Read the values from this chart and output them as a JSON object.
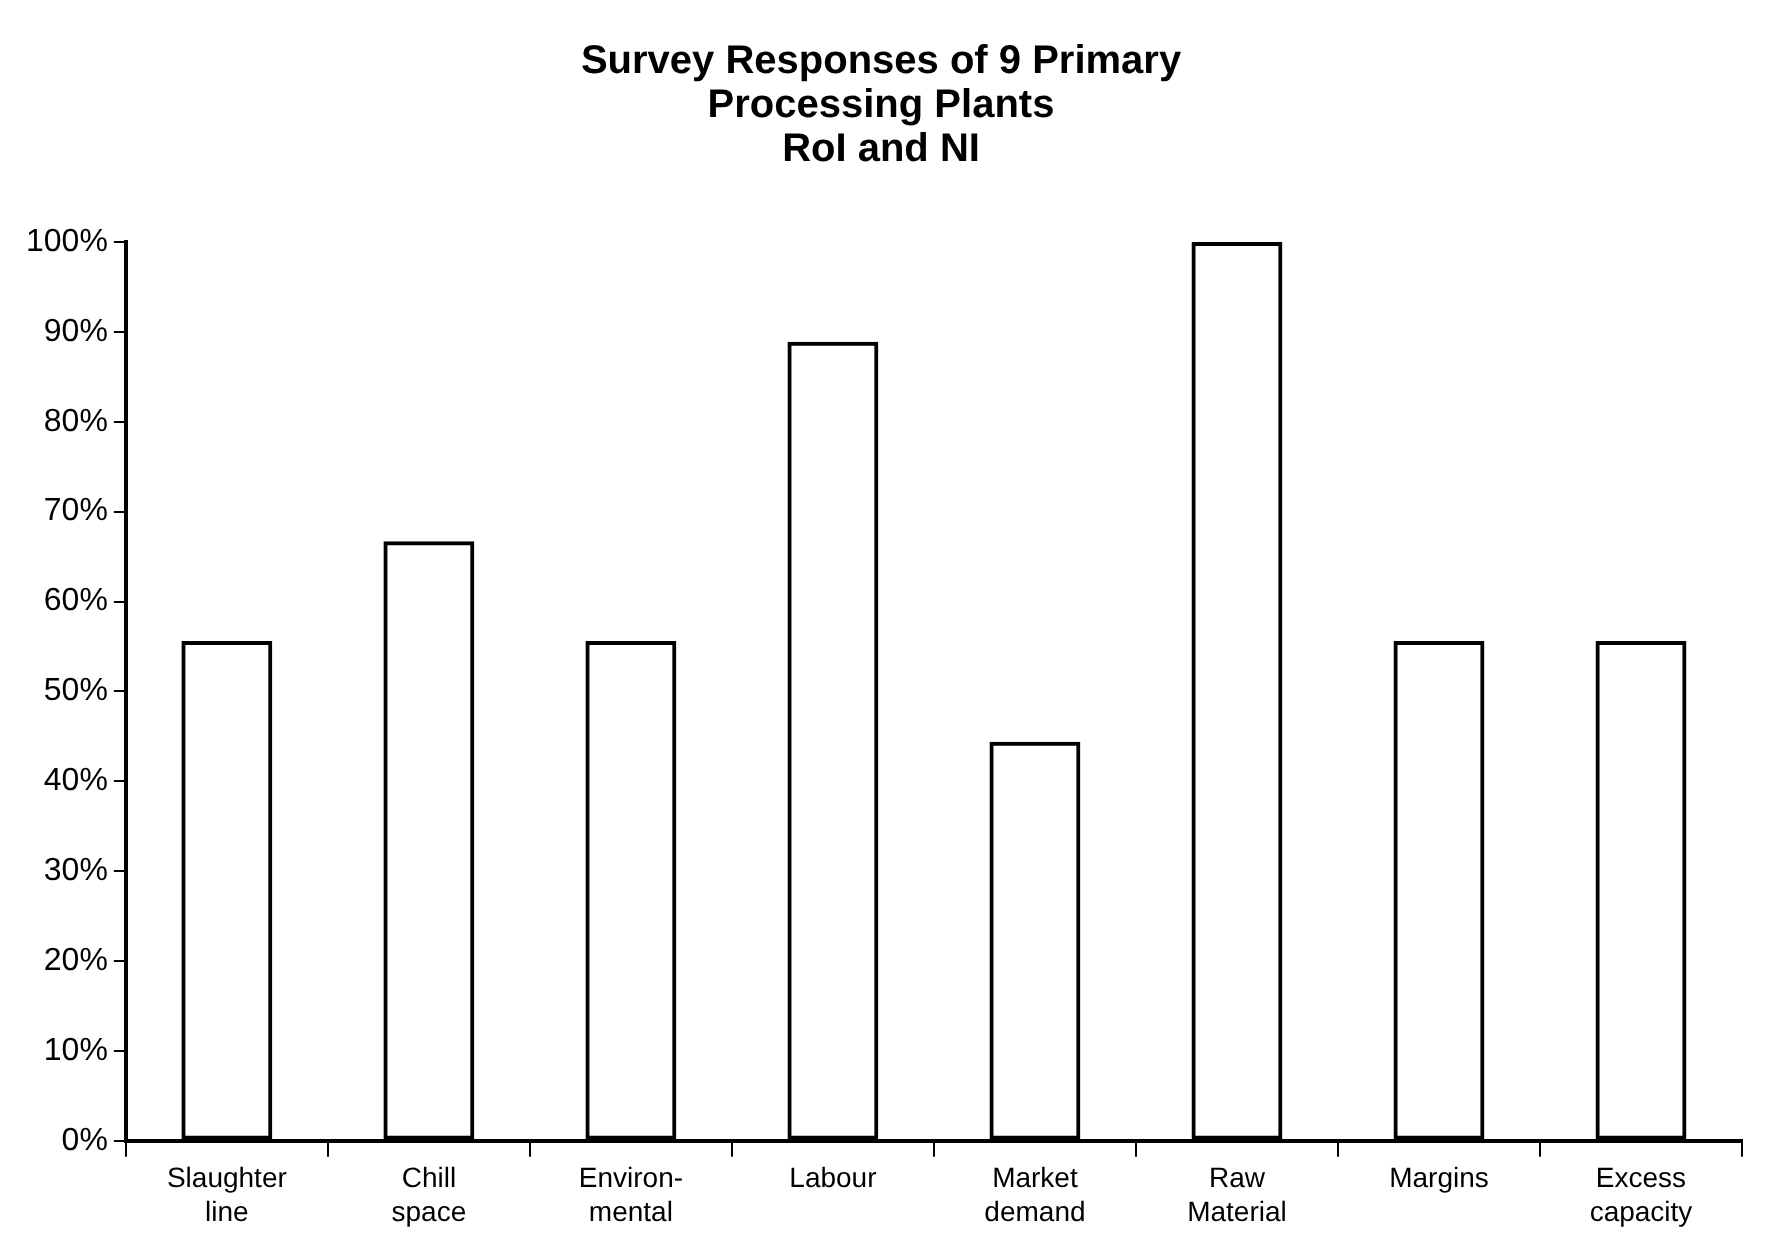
{
  "chart_data": {
    "type": "bar",
    "title": "Survey Responses of 9 Primary\nProcessing Plants\nRoI and NI",
    "categories": [
      "Slaughter\nline",
      "Chill\nspace",
      "Environ-\nmental",
      "Labour",
      "Market\ndemand",
      "Raw\nMaterial",
      "Margins",
      "Excess\ncapacity"
    ],
    "values": [
      55.6,
      66.7,
      55.6,
      88.9,
      44.4,
      100,
      55.6,
      55.6
    ],
    "color": "#000000",
    "ylim": [
      0,
      100
    ],
    "yticks": [
      {
        "value": 0,
        "label": "0%"
      },
      {
        "value": 10,
        "label": "10%"
      },
      {
        "value": 20,
        "label": "20%"
      },
      {
        "value": 30,
        "label": "30%"
      },
      {
        "value": 40,
        "label": "40%"
      },
      {
        "value": 50,
        "label": "50%"
      },
      {
        "value": 60,
        "label": "60%"
      },
      {
        "value": 70,
        "label": "70%"
      },
      {
        "value": 80,
        "label": "80%"
      },
      {
        "value": 90,
        "label": "90%"
      },
      {
        "value": 100,
        "label": "100%"
      }
    ],
    "grid": false,
    "legend": false
  }
}
